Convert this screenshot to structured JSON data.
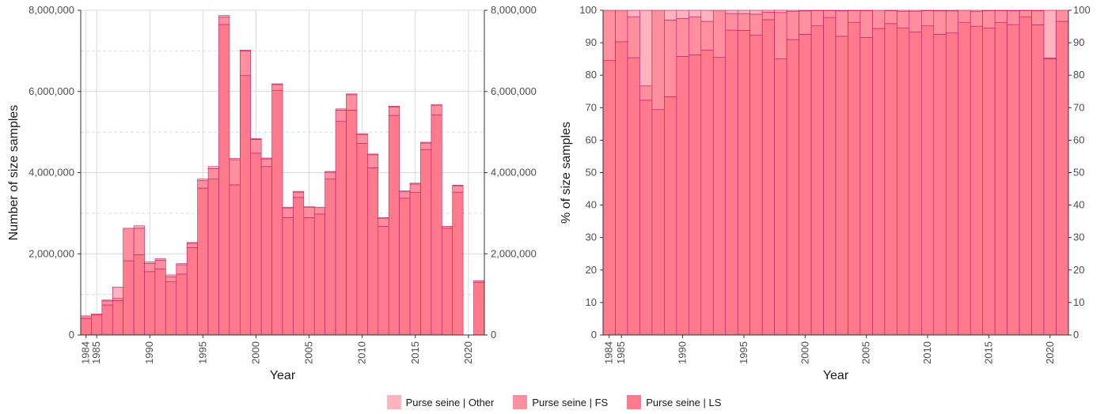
{
  "chart_data": [
    {
      "type": "bar",
      "stacked": true,
      "xlabel": "Year",
      "ylabel": "Number of size samples",
      "ylim": [
        0,
        8000000
      ],
      "yticks": [
        "0",
        "2,000,000",
        "4,000,000",
        "6,000,000",
        "8,000,000"
      ],
      "yticks_values": [
        0,
        2000000,
        4000000,
        6000000,
        8000000
      ],
      "xticks": [
        "1984",
        "1985",
        "1990",
        "1995",
        "2000",
        "2005",
        "2010",
        "2015",
        "2020"
      ],
      "secondary_y_axis": true,
      "grid": true,
      "categories": [
        "1984",
        "1985",
        "1986",
        "1987",
        "1988",
        "1989",
        "1990",
        "1991",
        "1992",
        "1993",
        "1994",
        "1995",
        "1996",
        "1997",
        "1998",
        "1999",
        "2000",
        "2001",
        "2002",
        "2003",
        "2004",
        "2005",
        "2006",
        "2007",
        "2008",
        "2009",
        "2010",
        "2011",
        "2012",
        "2013",
        "2014",
        "2015",
        "2016",
        "2017",
        "2018",
        "2019",
        "2020",
        "2021"
      ],
      "series": [
        {
          "name": "Purse seine | LS",
          "values": [
            410000,
            490000,
            740000,
            850000,
            1830000,
            1980000,
            1560000,
            1630000,
            1310000,
            1500000,
            2150000,
            3620000,
            3840000,
            7650000,
            3700000,
            6390000,
            4480000,
            4150000,
            6030000,
            2890000,
            3390000,
            2890000,
            2980000,
            3840000,
            5260000,
            5540000,
            4720000,
            4120000,
            2680000,
            5410000,
            3370000,
            3510000,
            4570000,
            5420000,
            2630000,
            3520000,
            0,
            1300000
          ]
        },
        {
          "name": "Purse seine | FS",
          "values": [
            60000,
            30000,
            100000,
            50000,
            800000,
            650000,
            200000,
            210000,
            120000,
            230000,
            110000,
            180000,
            260000,
            180000,
            620000,
            610000,
            340000,
            190000,
            140000,
            240000,
            130000,
            250000,
            170000,
            170000,
            280000,
            380000,
            220000,
            320000,
            200000,
            210000,
            160000,
            210000,
            160000,
            230000,
            50000,
            160000,
            0,
            40000
          ]
        },
        {
          "name": "Purse seine | Other",
          "values": [
            0,
            0,
            20000,
            280000,
            0,
            60000,
            40000,
            40000,
            50000,
            30000,
            20000,
            40000,
            50000,
            40000,
            30000,
            20000,
            20000,
            20000,
            20000,
            20000,
            20000,
            20000,
            0,
            20000,
            30000,
            20000,
            20000,
            20000,
            10000,
            20000,
            20000,
            20000,
            20000,
            30000,
            0,
            10000,
            0,
            0
          ]
        }
      ]
    },
    {
      "type": "bar",
      "stacked": true,
      "xlabel": "Year",
      "ylabel": "% of size samples",
      "ylim": [
        0,
        100
      ],
      "yticks": [
        "0",
        "10",
        "20",
        "30",
        "40",
        "50",
        "60",
        "70",
        "80",
        "90",
        "100"
      ],
      "yticks_values": [
        0,
        10,
        20,
        30,
        40,
        50,
        60,
        70,
        80,
        90,
        100
      ],
      "xticks": [
        "1984",
        "1985",
        "1990",
        "1995",
        "2000",
        "2005",
        "2010",
        "2015",
        "2020"
      ],
      "secondary_y_axis": true,
      "grid": true,
      "categories": [
        "1984",
        "1985",
        "1986",
        "1987",
        "1988",
        "1989",
        "1990",
        "1991",
        "1992",
        "1993",
        "1994",
        "1995",
        "1996",
        "1997",
        "1998",
        "1999",
        "2000",
        "2001",
        "2002",
        "2003",
        "2004",
        "2005",
        "2006",
        "2007",
        "2008",
        "2009",
        "2010",
        "2011",
        "2012",
        "2013",
        "2014",
        "2015",
        "2016",
        "2017",
        "2018",
        "2019",
        "2020",
        "2021"
      ],
      "series": [
        {
          "name": "Purse seine | LS",
          "values": [
            84.5,
            90.3,
            85.4,
            72.3,
            69.4,
            73.4,
            85.8,
            86.3,
            87.7,
            85.5,
            93.9,
            93.8,
            92.4,
            97.1,
            85.0,
            91.0,
            92.6,
            95.2,
            97.8,
            92.0,
            96.3,
            91.6,
            94.4,
            95.9,
            94.6,
            93.3,
            95.2,
            92.6,
            93.0,
            96.3,
            95.1,
            94.5,
            96.2,
            95.6,
            98.0,
            95.5,
            85.0,
            96.6
          ]
        },
        {
          "name": "Purse seine | FS",
          "values": [
            15.5,
            9.7,
            12.6,
            4.4,
            30.6,
            23.6,
            11.7,
            11.7,
            8.9,
            14.5,
            5.1,
            5.2,
            6.4,
            2.3,
            14.3,
            8.7,
            7.2,
            4.7,
            2.1,
            7.8,
            3.6,
            8.3,
            5.6,
            4.0,
            5.1,
            6.4,
            4.7,
            7.2,
            6.8,
            3.7,
            4.6,
            5.4,
            3.7,
            4.2,
            1.9,
            4.3,
            0.3,
            3.4
          ]
        },
        {
          "name": "Purse seine | Other",
          "values": [
            0,
            0,
            2.0,
            23.3,
            0,
            3.0,
            2.5,
            2.0,
            3.4,
            0,
            1.0,
            1.0,
            1.2,
            0.6,
            0.7,
            0.3,
            0.2,
            0.1,
            0.1,
            0.2,
            0.1,
            0.1,
            0,
            0.1,
            0.3,
            0.3,
            0.1,
            0.2,
            0.2,
            0,
            0.3,
            0.1,
            0.1,
            0.2,
            0.1,
            0.2,
            14.7,
            0
          ]
        }
      ]
    }
  ],
  "legend": {
    "items": [
      {
        "label": "Purse seine | Other",
        "color": "#ffb3be"
      },
      {
        "label": "Purse seine | FS",
        "color": "#ff8f9f"
      },
      {
        "label": "Purse seine | LS",
        "color": "#ff7a8c"
      }
    ]
  },
  "colors": {
    "outline": "#c2185b",
    "grid_major": "#d9d9d9",
    "grid_minor": "#dcdcdc",
    "axis": "#333333"
  }
}
